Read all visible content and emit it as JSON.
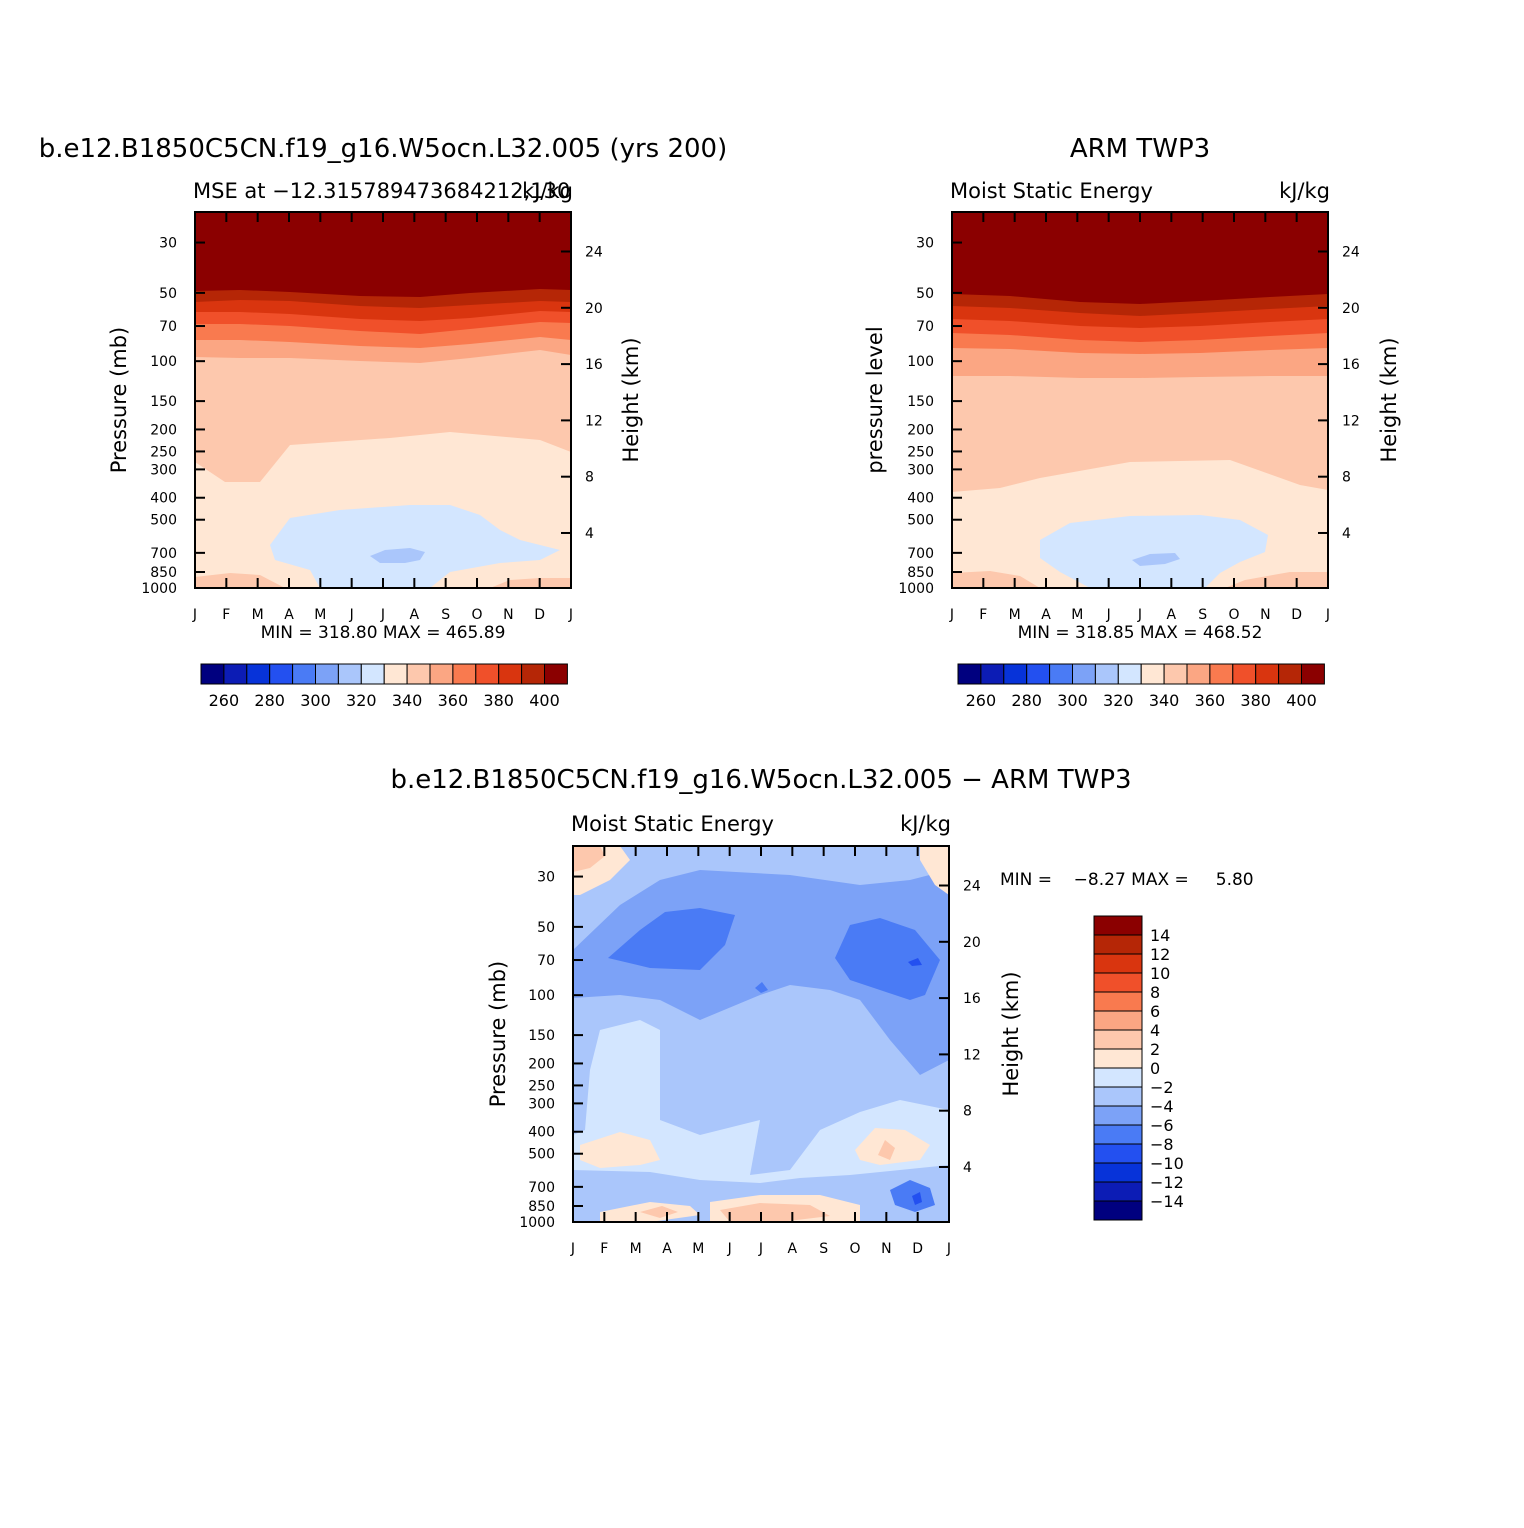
{
  "colors": {
    "abs": [
      "#00007f",
      "#0c1cb5",
      "#0733d9",
      "#2350f0",
      "#4a7bf5",
      "#7ca2f7",
      "#aac6fb",
      "#d3e6ff",
      "#ffe7d4",
      "#fdc8ad",
      "#fba683",
      "#f97a4f",
      "#f0502a",
      "#d9350f",
      "#b52606",
      "#8b0000"
    ],
    "diff": [
      "#00007f",
      "#0c1cb5",
      "#0733d9",
      "#2350f0",
      "#4a7bf5",
      "#7ca2f7",
      "#aac6fb",
      "#d3e6ff",
      "#ffe7d4",
      "#fdc8ad",
      "#fba683",
      "#f97a4f",
      "#f0502a",
      "#d9350f",
      "#b52606",
      "#8b0000"
    ]
  },
  "chart_data": [
    {
      "type": "contour",
      "title": "b.e12.B1850C5CN.f19_g16.W5ocn.L32.005 (yrs 200)",
      "left_string": "MSE at −12.315789473684212,130",
      "right_string": "kJ/kg",
      "ylabel": "Pressure (mb)",
      "ylabel_right": "Height (km)",
      "x_ticks": [
        "J",
        "F",
        "M",
        "A",
        "M",
        "J",
        "J",
        "A",
        "S",
        "O",
        "N",
        "D",
        "J"
      ],
      "p_ticks": [
        "30",
        "50",
        "70",
        "100",
        "150",
        "200",
        "250",
        "300",
        "400",
        "500",
        "700",
        "850",
        "1000"
      ],
      "p_values": [
        30,
        50,
        70,
        100,
        150,
        200,
        250,
        300,
        400,
        500,
        700,
        850,
        1000
      ],
      "h_ticks": [
        "24",
        "20",
        "16",
        "12",
        "8",
        "4"
      ],
      "stats": "MIN = 318.80  MAX = 465.89",
      "colorbar_labels": [
        "260",
        "280",
        "300",
        "320",
        "340",
        "360",
        "380",
        "400"
      ],
      "contour_levels": [
        260,
        270,
        280,
        290,
        300,
        310,
        320,
        330,
        340,
        350,
        360,
        370,
        380,
        390,
        400
      ]
    },
    {
      "type": "contour",
      "title": "ARM TWP3",
      "left_string": "Moist Static Energy",
      "right_string": "kJ/kg",
      "ylabel": "pressure level",
      "ylabel_right": "Height (km)",
      "x_ticks": [
        "J",
        "F",
        "M",
        "A",
        "M",
        "J",
        "J",
        "A",
        "S",
        "O",
        "N",
        "D",
        "J"
      ],
      "p_ticks": [
        "30",
        "50",
        "70",
        "100",
        "150",
        "200",
        "250",
        "300",
        "400",
        "500",
        "700",
        "850",
        "1000"
      ],
      "p_values": [
        30,
        50,
        70,
        100,
        150,
        200,
        250,
        300,
        400,
        500,
        700,
        850,
        1000
      ],
      "h_ticks": [
        "24",
        "20",
        "16",
        "12",
        "8",
        "4"
      ],
      "stats": "MIN = 318.85  MAX = 468.52",
      "colorbar_labels": [
        "260",
        "280",
        "300",
        "320",
        "340",
        "360",
        "380",
        "400"
      ],
      "contour_levels": [
        260,
        270,
        280,
        290,
        300,
        310,
        320,
        330,
        340,
        350,
        360,
        370,
        380,
        390,
        400
      ]
    },
    {
      "type": "contour",
      "title": "b.e12.B1850C5CN.f19_g16.W5ocn.L32.005 − ARM TWP3",
      "left_string": "Moist Static Energy",
      "right_string": "kJ/kg",
      "ylabel": "Pressure (mb)",
      "ylabel_right": "Height (km)",
      "x_ticks": [
        "J",
        "F",
        "M",
        "A",
        "M",
        "J",
        "J",
        "A",
        "S",
        "O",
        "N",
        "D",
        "J"
      ],
      "p_ticks": [
        "30",
        "50",
        "70",
        "100",
        "150",
        "200",
        "250",
        "300",
        "400",
        "500",
        "700",
        "850",
        "1000"
      ],
      "p_values": [
        30,
        50,
        70,
        100,
        150,
        200,
        250,
        300,
        400,
        500,
        700,
        850,
        1000
      ],
      "h_ticks": [
        "24",
        "20",
        "16",
        "12",
        "8",
        "4"
      ],
      "stats": "MIN =    −8.27 MAX =     5.80",
      "colorbar_labels": [
        "14",
        "12",
        "10",
        "8",
        "6",
        "4",
        "2",
        "0",
        "−2",
        "−4",
        "−6",
        "−8",
        "−10",
        "−12",
        "−14"
      ],
      "contour_levels": [
        -14,
        -12,
        -10,
        -8,
        -6,
        -4,
        -2,
        0,
        2,
        4,
        6,
        8,
        10,
        12,
        14
      ]
    }
  ]
}
